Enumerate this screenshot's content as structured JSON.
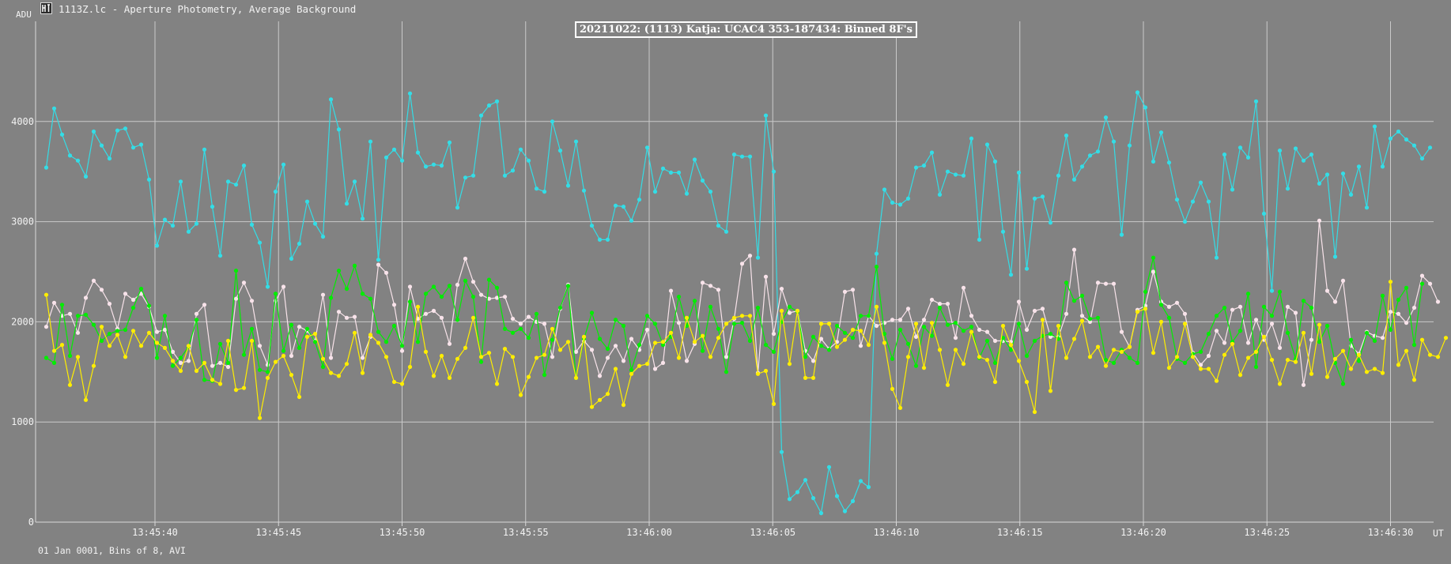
{
  "app": {
    "icon": "tangra-app-icon",
    "title": "1113Z.lc - Aperture Photometry, Average Background"
  },
  "footer": "01 Jan 0001, Bins of 8, AVI",
  "colors": {
    "background": "#828282",
    "grid": "#c9c9c9",
    "axis": "#d9d9d9",
    "series": [
      "#33dde6",
      "#f8e3ea",
      "#00ee00",
      "#ffee00"
    ]
  },
  "chart_data": {
    "type": "line",
    "title": "20211022: (1113) Katja: UCAC4 353-187434: Binned 8F's",
    "ylabel": "ADU",
    "xlabel": "UT",
    "ylim": [
      0,
      5000
    ],
    "y_ticks": [
      0,
      1000,
      2000,
      3000,
      4000
    ],
    "x_ticks": [
      "13:45:40",
      "13:45:45",
      "13:45:50",
      "13:45:55",
      "13:46:00",
      "13:46:05",
      "13:46:10",
      "13:46:15",
      "13:46:20",
      "13:46:25",
      "13:46:30"
    ],
    "x_start_seconds": 35.6,
    "x_step_seconds": 0.32,
    "x_end_seconds": 32.0,
    "grid": true,
    "series": [
      {
        "values": [
          3540,
          4130,
          3870,
          3660,
          3610,
          3450,
          3900,
          3760,
          3630,
          3910,
          3930,
          3740,
          3770,
          3420,
          2760,
          3020,
          2960,
          3400,
          2900,
          2980,
          3720,
          3150,
          2660,
          3400,
          3370,
          3560,
          2970,
          2790,
          2350,
          3300,
          3570,
          2630,
          2780,
          3200,
          2980,
          2850,
          4220,
          3920,
          3180,
          3400,
          3030,
          3800,
          2620,
          3640,
          3720,
          3610,
          4280,
          3690,
          3550,
          3570,
          3560,
          3790,
          3140,
          3440,
          3460,
          4060,
          4160,
          4200,
          3460,
          3510,
          3720,
          3610,
          3330,
          3300,
          4000,
          3710,
          3360,
          3800,
          3310,
          2960,
          2820,
          2820,
          3160,
          3150,
          3010,
          3220,
          3740,
          3300,
          3530,
          3490,
          3490,
          3280,
          3620,
          3410,
          3300,
          2960,
          2900,
          3670,
          3650,
          3650,
          2640,
          4060,
          3500,
          700,
          230,
          300,
          420,
          240,
          90,
          550,
          260,
          110,
          210,
          410,
          350,
          2680,
          3320,
          3190,
          3170,
          3230,
          3540,
          3560,
          3690,
          3270,
          3500,
          3470,
          3460,
          3830,
          2820,
          3770,
          3600,
          2900,
          2470,
          3490,
          2530,
          3230,
          3250,
          2990,
          3460,
          3860,
          3420,
          3550,
          3660,
          3700,
          4040,
          3800,
          2870,
          3760,
          4290,
          4140,
          3600,
          3890,
          3590,
          3220,
          3000,
          3200,
          3390,
          3200,
          2640,
          3670,
          3320,
          3740,
          3640,
          4200,
          3080,
          2310,
          3710,
          3330,
          3730,
          3610,
          3670,
          3380,
          3470,
          2650,
          3480,
          3270,
          3550,
          3140,
          3950,
          3550,
          3830,
          3900,
          3820,
          3760,
          3630,
          3740
        ]
      },
      {
        "values": [
          1950,
          2190,
          2060,
          2080,
          1890,
          2240,
          2410,
          2320,
          2180,
          1930,
          2280,
          2220,
          2280,
          2150,
          1900,
          1920,
          1700,
          1590,
          1610,
          2080,
          2170,
          1560,
          1590,
          1550,
          2230,
          2390,
          2210,
          1760,
          1570,
          2210,
          2350,
          1660,
          1950,
          1910,
          1810,
          2270,
          1640,
          2100,
          2040,
          2050,
          1640,
          1850,
          2570,
          2490,
          2170,
          1710,
          2350,
          2030,
          2080,
          2110,
          2040,
          1780,
          2370,
          2630,
          2400,
          2270,
          2230,
          2240,
          2250,
          2030,
          1980,
          2050,
          2000,
          1980,
          1650,
          2130,
          2370,
          1700,
          1810,
          1720,
          1460,
          1640,
          1760,
          1610,
          1830,
          1720,
          1920,
          1530,
          1590,
          2310,
          1990,
          1610,
          1780,
          2390,
          2360,
          2320,
          1650,
          2030,
          2580,
          2660,
          1490,
          2450,
          1880,
          2330,
          2090,
          2110,
          1710,
          1610,
          1830,
          1730,
          1800,
          2300,
          2320,
          1760,
          2060,
          1960,
          1990,
          2020,
          2020,
          2130,
          1850,
          2020,
          2220,
          2180,
          2180,
          1840,
          2340,
          2060,
          1920,
          1900,
          1810,
          1810,
          1800,
          2200,
          1920,
          2110,
          2130,
          1850,
          1850,
          2080,
          2720,
          2060,
          2000,
          2390,
          2380,
          2380,
          1900,
          1750,
          2120,
          2160,
          2500,
          2200,
          2150,
          2190,
          2080,
          1690,
          1570,
          1660,
          1910,
          1790,
          2120,
          2150,
          1790,
          2020,
          1820,
          1980,
          1740,
          2150,
          2090,
          1370,
          1820,
          3010,
          2310,
          2200,
          2410,
          1760,
          1680,
          1900,
          1860,
          1840,
          2100,
          2080,
          1990,
          2140,
          2460,
          2380,
          2200
        ]
      },
      {
        "values": [
          1640,
          1590,
          2170,
          1660,
          2060,
          2070,
          1970,
          1810,
          1880,
          1910,
          1920,
          2140,
          2330,
          2160,
          1640,
          2060,
          1560,
          1640,
          1750,
          2020,
          1420,
          1410,
          1780,
          1590,
          2510,
          1670,
          1930,
          1520,
          1500,
          2280,
          1710,
          1970,
          1740,
          1930,
          1800,
          1550,
          2240,
          2510,
          2330,
          2560,
          2280,
          2230,
          1900,
          1800,
          1960,
          1760,
          2200,
          1800,
          2280,
          2350,
          2250,
          2360,
          2020,
          2410,
          2250,
          1600,
          2420,
          2340,
          1930,
          1890,
          1930,
          1840,
          2080,
          1470,
          1820,
          2140,
          2360,
          1440,
          1830,
          2090,
          1830,
          1730,
          2020,
          1960,
          1520,
          1770,
          2060,
          1980,
          1770,
          1850,
          2250,
          1960,
          2210,
          1710,
          2150,
          1930,
          1500,
          1980,
          1990,
          1810,
          2140,
          1770,
          1700,
          2000,
          2150,
          2100,
          1650,
          1850,
          1760,
          1720,
          1960,
          1890,
          1840,
          2060,
          2060,
          2550,
          1880,
          1630,
          1920,
          1780,
          1560,
          1950,
          1860,
          2140,
          1970,
          1990,
          1910,
          1950,
          1640,
          1810,
          1590,
          1840,
          1720,
          1980,
          1660,
          1810,
          1860,
          1880,
          1830,
          2390,
          2210,
          2260,
          2030,
          2040,
          1620,
          1590,
          1720,
          1640,
          1590,
          2300,
          2640,
          2170,
          2040,
          1630,
          1590,
          1680,
          1700,
          1880,
          2060,
          2140,
          1800,
          1910,
          2280,
          1550,
          2150,
          2060,
          2300,
          1890,
          1630,
          2210,
          2140,
          1800,
          1960,
          1590,
          1380,
          1820,
          1610,
          1890,
          1810,
          2260,
          1920,
          2220,
          2340,
          1770,
          2380
        ]
      },
      {
        "values": [
          2270,
          1710,
          1770,
          1370,
          1650,
          1220,
          1560,
          1950,
          1760,
          1870,
          1650,
          1910,
          1760,
          1890,
          1790,
          1740,
          1610,
          1510,
          1760,
          1510,
          1590,
          1420,
          1380,
          1810,
          1320,
          1340,
          1810,
          1040,
          1440,
          1600,
          1660,
          1470,
          1250,
          1850,
          1880,
          1630,
          1490,
          1460,
          1580,
          1890,
          1490,
          1870,
          1790,
          1650,
          1400,
          1380,
          1550,
          2150,
          1700,
          1460,
          1660,
          1440,
          1630,
          1740,
          2040,
          1650,
          1690,
          1380,
          1730,
          1650,
          1270,
          1450,
          1640,
          1670,
          1930,
          1720,
          1800,
          1440,
          1850,
          1150,
          1220,
          1280,
          1530,
          1170,
          1480,
          1560,
          1580,
          1790,
          1800,
          1890,
          1640,
          2040,
          1800,
          1860,
          1650,
          1840,
          1980,
          2040,
          2060,
          2060,
          1480,
          1510,
          1180,
          2110,
          1580,
          2110,
          1440,
          1440,
          1980,
          1980,
          1750,
          1820,
          1920,
          1910,
          1770,
          2150,
          1790,
          1330,
          1140,
          1650,
          1980,
          1540,
          1990,
          1720,
          1370,
          1720,
          1580,
          1900,
          1650,
          1620,
          1400,
          1960,
          1770,
          1610,
          1400,
          1100,
          2020,
          1310,
          1960,
          1640,
          1830,
          2010,
          1650,
          1750,
          1560,
          1720,
          1700,
          1750,
          2100,
          2130,
          1690,
          2000,
          1540,
          1650,
          1980,
          1650,
          1530,
          1530,
          1410,
          1670,
          1780,
          1470,
          1640,
          1700,
          1850,
          1620,
          1380,
          1620,
          1600,
          1890,
          1480,
          1970,
          1450,
          1630,
          1710,
          1530,
          1670,
          1500,
          1530,
          1490,
          2400,
          1570,
          1710,
          1420,
          1820,
          1670,
          1650,
          1840
        ]
      }
    ]
  }
}
